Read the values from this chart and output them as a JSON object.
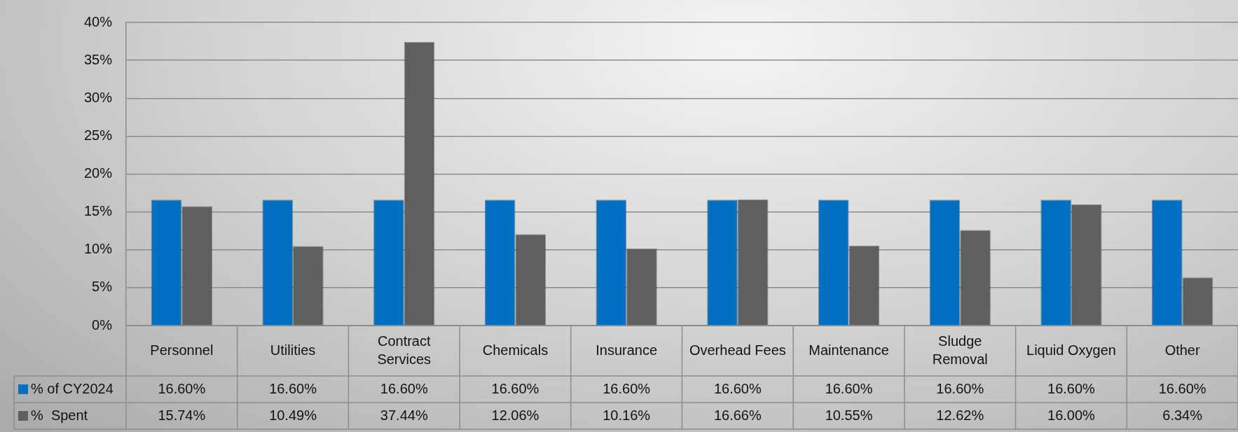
{
  "chart_data": {
    "type": "bar",
    "categories": [
      "Personnel",
      "Utilities",
      "Contract Services",
      "Chemicals",
      "Insurance",
      "Overhead Fees",
      "Maintenance",
      "Sludge Removal",
      "Liquid Oxygen",
      "Other"
    ],
    "series": [
      {
        "name": "% of CY2024",
        "color": "#0070c0",
        "values": [
          16.6,
          16.6,
          16.6,
          16.6,
          16.6,
          16.6,
          16.6,
          16.6,
          16.6,
          16.6
        ],
        "value_labels": [
          "16.60%",
          "16.60%",
          "16.60%",
          "16.60%",
          "16.60%",
          "16.60%",
          "16.60%",
          "16.60%",
          "16.60%",
          "16.60%"
        ]
      },
      {
        "name": "%  Spent",
        "color": "#5f5f5f",
        "values": [
          15.74,
          10.49,
          37.44,
          12.06,
          10.16,
          16.66,
          10.55,
          12.62,
          16.0,
          6.34
        ],
        "value_labels": [
          "15.74%",
          "10.49%",
          "37.44%",
          "12.06%",
          "10.16%",
          "16.66%",
          "10.55%",
          "12.62%",
          "16.00%",
          "6.34%"
        ]
      }
    ],
    "ylim": [
      0,
      40
    ],
    "yticks": [
      {
        "value": 0,
        "label": "0%"
      },
      {
        "value": 5,
        "label": "5%"
      },
      {
        "value": 10,
        "label": "10%"
      },
      {
        "value": 15,
        "label": "15%"
      },
      {
        "value": 20,
        "label": "20%"
      },
      {
        "value": 25,
        "label": "25%"
      },
      {
        "value": 30,
        "label": "30%"
      },
      {
        "value": 35,
        "label": "35%"
      },
      {
        "value": 40,
        "label": "40%"
      }
    ],
    "grid": "y",
    "legend": "bottom"
  }
}
